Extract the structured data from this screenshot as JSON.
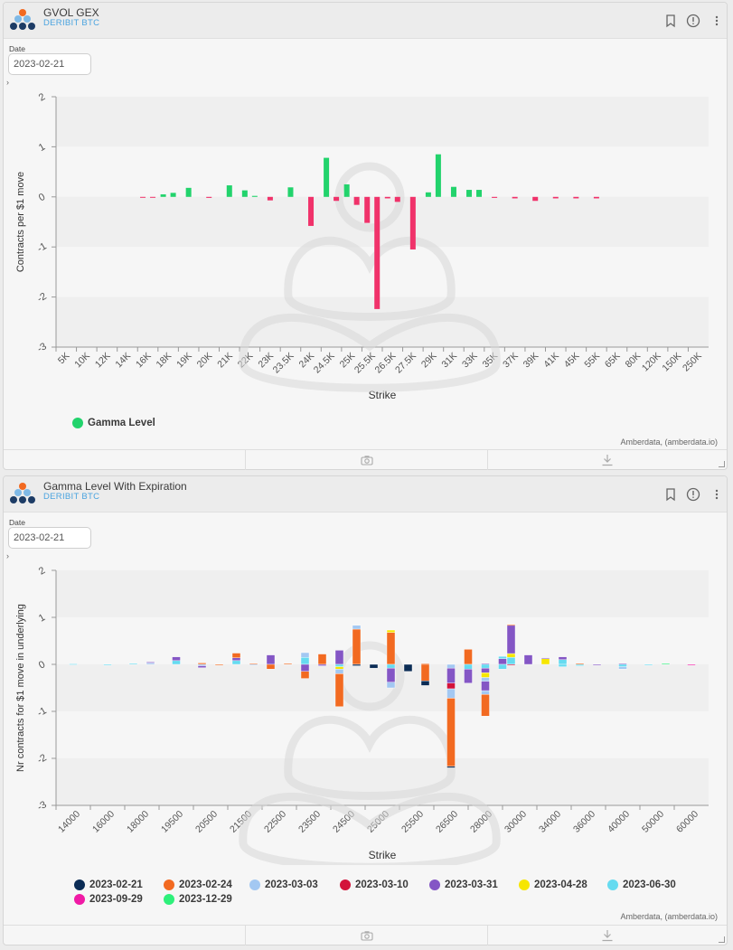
{
  "panels": [
    {
      "title": "GVOL GEX",
      "subtitle": "DERIBIT BTC",
      "date_label": "Date",
      "date_value": "2023-02-21",
      "credit": "Amberdata, (amberdata.io)"
    },
    {
      "title": "Gamma Level With Expiration",
      "subtitle": "DERIBIT BTC",
      "date_label": "Date",
      "date_value": "2023-02-21",
      "credit": "Amberdata, (amberdata.io)"
    }
  ],
  "icons": [
    "bookmark-icon",
    "info-icon",
    "more-icon",
    "camera-icon",
    "download-icon",
    "expand-icon"
  ],
  "chart_data": [
    {
      "type": "bar",
      "title": "GVOL GEX",
      "xlabel": "Strike",
      "ylabel": "Contracts per $1 move",
      "ylim": [
        -3,
        2
      ],
      "yticks": [
        "2",
        "1",
        "0",
        "-1",
        "-2",
        "-3"
      ],
      "positive_color": "#22d36c",
      "negative_color": "#f0326a",
      "categories": [
        "5K",
        "10K",
        "12K",
        "14K",
        "16K",
        "18K",
        "19K",
        "20K",
        "21K",
        "22K",
        "23K",
        "23.5K",
        "24K",
        "24.5K",
        "25K",
        "25.5K",
        "26.5K",
        "27.5K",
        "29K",
        "31K",
        "33K",
        "35K",
        "37K",
        "39K",
        "41K",
        "45K",
        "55K",
        "65K",
        "80K",
        "120K",
        "150K",
        "250K"
      ],
      "bars": [
        {
          "x": "16K",
          "y": -0.01
        },
        {
          "x": "16K",
          "y": -0.01
        },
        {
          "x": "18K",
          "y": 0.05
        },
        {
          "x": "18K",
          "y": 0.08
        },
        {
          "x": "19K",
          "y": 0.18
        },
        {
          "x": "20K",
          "y": -0.02
        },
        {
          "x": "21K",
          "y": 0.23
        },
        {
          "x": "22K",
          "y": 0.13
        },
        {
          "x": "22K",
          "y": 0.02
        },
        {
          "x": "23K",
          "y": -0.07
        },
        {
          "x": "23.5K",
          "y": 0.19
        },
        {
          "x": "24K",
          "y": -0.58
        },
        {
          "x": "24.5K",
          "y": 0.78
        },
        {
          "x": "24.5K",
          "y": -0.08
        },
        {
          "x": "25K",
          "y": 0.25
        },
        {
          "x": "25K",
          "y": -0.16
        },
        {
          "x": "25.5K",
          "y": -0.52
        },
        {
          "x": "25.5K",
          "y": -2.24
        },
        {
          "x": "26.5K",
          "y": -0.03
        },
        {
          "x": "26.5K",
          "y": -0.1
        },
        {
          "x": "27.5K",
          "y": -1.05
        },
        {
          "x": "29K",
          "y": 0.09
        },
        {
          "x": "29K",
          "y": 0.85
        },
        {
          "x": "31K",
          "y": 0.2
        },
        {
          "x": "33K",
          "y": 0.14
        },
        {
          "x": "33K",
          "y": 0.14
        },
        {
          "x": "35K",
          "y": -0.02
        },
        {
          "x": "37K",
          "y": -0.03
        },
        {
          "x": "39K",
          "y": -0.08
        },
        {
          "x": "41K",
          "y": -0.03
        },
        {
          "x": "45K",
          "y": -0.03
        },
        {
          "x": "55K",
          "y": -0.03
        }
      ],
      "legend": [
        {
          "name": "Gamma Level",
          "color": "#22d36c"
        }
      ]
    },
    {
      "type": "bar",
      "title": "Gamma Level With Expiration",
      "xlabel": "Strike",
      "ylabel": "Nr contracts for $1 move in underlying",
      "ylim": [
        -3,
        2
      ],
      "yticks": [
        "2",
        "1",
        "0",
        "-1",
        "-2",
        "-3"
      ],
      "stacked": true,
      "categories": [
        "14000",
        "16000",
        "18000",
        "19500",
        "20500",
        "21500",
        "22500",
        "23500",
        "24500",
        "25000",
        "25500",
        "26500",
        "28000",
        "30000",
        "34000",
        "36000",
        "40000",
        "50000",
        "60000"
      ],
      "series": [
        {
          "name": "2023-02-21",
          "color": "#0b2c55"
        },
        {
          "name": "2023-02-24",
          "color": "#f26a21"
        },
        {
          "name": "2023-03-03",
          "color": "#a3c8f2"
        },
        {
          "name": "2023-03-10",
          "color": "#d3133a"
        },
        {
          "name": "2023-03-31",
          "color": "#8456c5"
        },
        {
          "name": "2023-04-28",
          "color": "#f6e600"
        },
        {
          "name": "2023-06-30",
          "color": "#66dbf0"
        },
        {
          "name": "2023-09-29",
          "color": "#f01aa5"
        },
        {
          "name": "2023-12-29",
          "color": "#2ef07a"
        }
      ],
      "bars": [
        {
          "x": "14000",
          "segments": [
            {
              "s": 6,
              "v": 0.01
            }
          ]
        },
        {
          "x": "16000",
          "segments": [
            {
              "s": 6,
              "v": -0.02
            }
          ]
        },
        {
          "x": "18000",
          "segments": [
            {
              "s": 6,
              "v": 0.02
            }
          ]
        },
        {
          "x": "18000",
          "segments": [
            {
              "s": 2,
              "v": 0.03
            },
            {
              "s": 4,
              "v": 0.02
            }
          ]
        },
        {
          "x": "19500",
          "segments": [
            {
              "s": 6,
              "v": 0.08
            },
            {
              "s": 4,
              "v": 0.08
            }
          ]
        },
        {
          "x": "20500",
          "segments": [
            {
              "s": 1,
              "v": 0.03
            },
            {
              "s": 2,
              "v": -0.03
            },
            {
              "s": 4,
              "v": -0.04
            }
          ]
        },
        {
          "x": "20500",
          "segments": [
            {
              "s": 1,
              "v": -0.02
            }
          ]
        },
        {
          "x": "21500",
          "segments": [
            {
              "s": 6,
              "v": 0.08
            },
            {
              "s": 4,
              "v": 0.06
            },
            {
              "s": 1,
              "v": 0.1
            }
          ]
        },
        {
          "x": "21500",
          "segments": [
            {
              "s": 1,
              "v": 0.02
            },
            {
              "s": 2,
              "v": -0.02
            }
          ]
        },
        {
          "x": "22500",
          "segments": [
            {
              "s": 4,
              "v": 0.2
            },
            {
              "s": 1,
              "v": -0.1
            }
          ]
        },
        {
          "x": "22500",
          "segments": [
            {
              "s": 1,
              "v": 0.02
            }
          ]
        },
        {
          "x": "23500",
          "segments": [
            {
              "s": 6,
              "v": 0.15
            },
            {
              "s": 2,
              "v": 0.1
            },
            {
              "s": 4,
              "v": -0.15
            },
            {
              "s": 1,
              "v": -0.15
            }
          ]
        },
        {
          "x": "23500",
          "segments": [
            {
              "s": 1,
              "v": 0.22
            },
            {
              "s": 4,
              "v": -0.03
            }
          ]
        },
        {
          "x": "24500",
          "segments": [
            {
              "s": 4,
              "v": 0.3
            },
            {
              "s": 6,
              "v": -0.05
            },
            {
              "s": 5,
              "v": -0.05
            },
            {
              "s": 2,
              "v": -0.1
            },
            {
              "s": 1,
              "v": -0.7
            }
          ]
        },
        {
          "x": "24500",
          "segments": [
            {
              "s": 1,
              "v": 0.75
            },
            {
              "s": 2,
              "v": 0.08
            },
            {
              "s": 0,
              "v": -0.03
            }
          ]
        },
        {
          "x": "25000",
          "segments": [
            {
              "s": 0,
              "v": -0.08
            }
          ]
        },
        {
          "x": "25000",
          "segments": [
            {
              "s": 1,
              "v": 0.68
            },
            {
              "s": 5,
              "v": 0.05
            },
            {
              "s": 6,
              "v": -0.08
            },
            {
              "s": 4,
              "v": -0.3
            },
            {
              "s": 2,
              "v": -0.12
            }
          ]
        },
        {
          "x": "25500",
          "segments": [
            {
              "s": 0,
              "v": -0.15
            }
          ]
        },
        {
          "x": "25500",
          "segments": [
            {
              "s": 1,
              "v": 0.02
            },
            {
              "s": 1,
              "v": -0.35
            },
            {
              "s": 0,
              "v": -0.1
            }
          ]
        },
        {
          "x": "26500",
          "segments": [
            {
              "s": 2,
              "v": -0.08
            },
            {
              "s": 4,
              "v": -0.32
            },
            {
              "s": 3,
              "v": -0.12
            },
            {
              "s": 2,
              "v": -0.2
            },
            {
              "s": 1,
              "v": -1.45
            },
            {
              "s": 0,
              "v": -0.03
            }
          ]
        },
        {
          "x": "28000",
          "segments": [
            {
              "s": 1,
              "v": 0.32
            },
            {
              "s": 6,
              "v": -0.1
            },
            {
              "s": 4,
              "v": -0.3
            }
          ]
        },
        {
          "x": "28000",
          "segments": [
            {
              "s": 4,
              "v": 0.02
            },
            {
              "s": 6,
              "v": -0.08
            },
            {
              "s": 4,
              "v": -0.1
            },
            {
              "s": 5,
              "v": -0.1
            },
            {
              "s": 2,
              "v": -0.08
            },
            {
              "s": 4,
              "v": -0.2
            },
            {
              "s": 2,
              "v": -0.08
            },
            {
              "s": 1,
              "v": -0.46
            }
          ]
        },
        {
          "x": "28000",
          "segments": [
            {
              "s": 4,
              "v": 0.12
            },
            {
              "s": 6,
              "v": 0.05
            },
            {
              "s": 6,
              "v": -0.1
            }
          ]
        },
        {
          "x": "30000",
          "segments": [
            {
              "s": 6,
              "v": 0.15
            },
            {
              "s": 5,
              "v": 0.08
            },
            {
              "s": 4,
              "v": 0.6
            },
            {
              "s": 1,
              "v": 0.02
            },
            {
              "s": 3,
              "v": -0.02
            }
          ]
        },
        {
          "x": "30000",
          "segments": [
            {
              "s": 4,
              "v": 0.2
            }
          ]
        },
        {
          "x": "34000",
          "segments": [
            {
              "s": 5,
              "v": 0.12
            },
            {
              "s": 4,
              "v": 0.02
            }
          ]
        },
        {
          "x": "34000",
          "segments": [
            {
              "s": 6,
              "v": 0.1
            },
            {
              "s": 4,
              "v": 0.06
            },
            {
              "s": 6,
              "v": -0.05
            }
          ]
        },
        {
          "x": "36000",
          "segments": [
            {
              "s": 6,
              "v": -0.03
            },
            {
              "s": 1,
              "v": 0.02
            }
          ]
        },
        {
          "x": "36000",
          "segments": [
            {
              "s": 4,
              "v": -0.02
            }
          ]
        },
        {
          "x": "40000",
          "segments": [
            {
              "s": 4,
              "v": 0.02
            },
            {
              "s": 6,
              "v": -0.05
            },
            {
              "s": 2,
              "v": -0.05
            }
          ]
        },
        {
          "x": "50000",
          "segments": [
            {
              "s": 6,
              "v": -0.02
            }
          ]
        },
        {
          "x": "50000",
          "segments": [
            {
              "s": 8,
              "v": 0.02
            }
          ]
        },
        {
          "x": "60000",
          "segments": [
            {
              "s": 7,
              "v": -0.02
            }
          ]
        }
      ]
    }
  ]
}
